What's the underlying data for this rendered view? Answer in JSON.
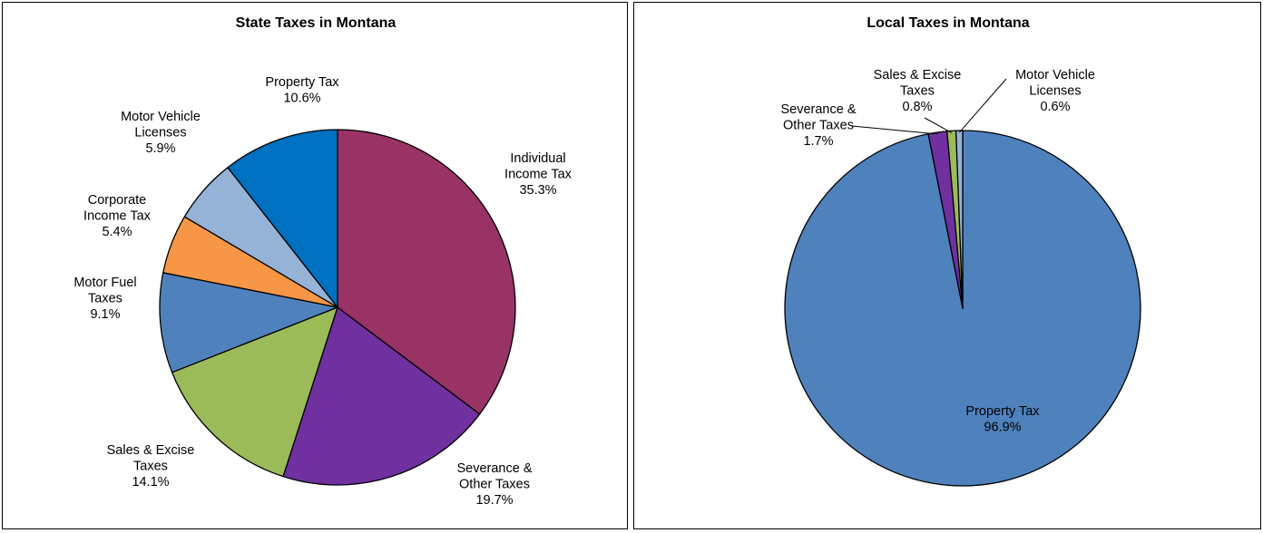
{
  "chart_data": [
    {
      "type": "pie",
      "title": "State Taxes in Montana",
      "slices": [
        {
          "label": [
            "Individual",
            "Income Tax"
          ],
          "value": 35.3,
          "value_label": "35.3%",
          "color": "#993366"
        },
        {
          "label": [
            "Severance &",
            "Other Taxes"
          ],
          "value": 19.7,
          "value_label": "19.7%",
          "color": "#7030A0"
        },
        {
          "label": [
            "Sales & Excise",
            "Taxes"
          ],
          "value": 14.1,
          "value_label": "14.1%",
          "color": "#9BBB59"
        },
        {
          "label": [
            "Motor Fuel",
            "Taxes"
          ],
          "value": 9.1,
          "value_label": "9.1%",
          "color": "#4F81BD"
        },
        {
          "label": [
            "Corporate",
            "Income Tax"
          ],
          "value": 5.4,
          "value_label": "5.4%",
          "color": "#F79646"
        },
        {
          "label": [
            "Motor Vehicle",
            "Licenses"
          ],
          "value": 5.9,
          "value_label": "5.9%",
          "color": "#95B3D7"
        },
        {
          "label": [
            "Property Tax"
          ],
          "value": 10.6,
          "value_label": "10.6%",
          "color": "#0070C0"
        }
      ]
    },
    {
      "type": "pie",
      "title": "Local Taxes in Montana",
      "slices": [
        {
          "label": [
            "Property Tax"
          ],
          "value": 96.9,
          "value_label": "96.9%",
          "color": "#4F81BD"
        },
        {
          "label": [
            "Severance &",
            "Other Taxes"
          ],
          "value": 1.7,
          "value_label": "1.7%",
          "color": "#7030A0"
        },
        {
          "label": [
            "Sales & Excise",
            "Taxes"
          ],
          "value": 0.8,
          "value_label": "0.8%",
          "color": "#9BBB59"
        },
        {
          "label": [
            "Motor Vehicle",
            "Licenses"
          ],
          "value": 0.6,
          "value_label": "0.6%",
          "color": "#95B3D7"
        }
      ]
    }
  ]
}
